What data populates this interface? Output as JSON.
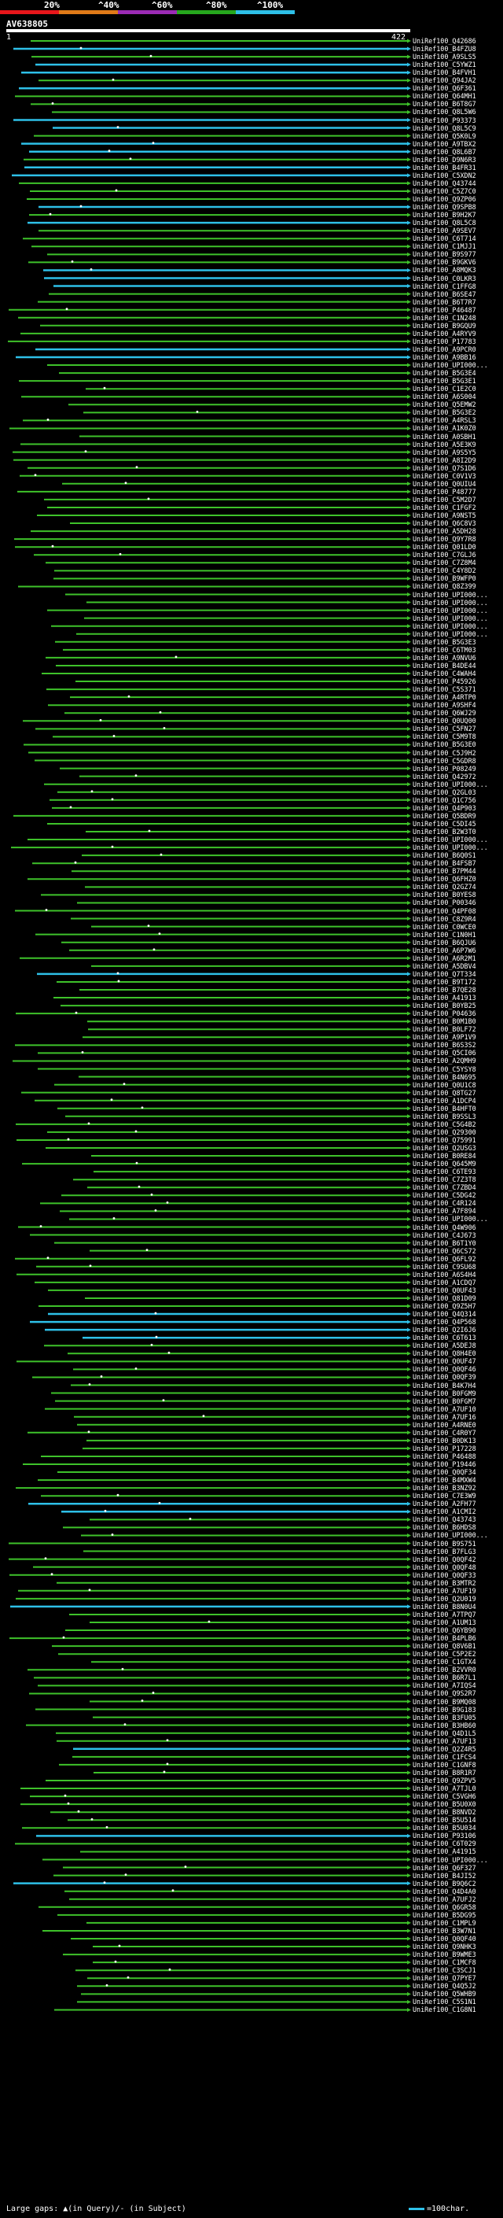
{
  "legend": {
    "labels": [
      "20%",
      "^40%",
      "^60%",
      "^80%",
      "^100%"
    ],
    "colors": [
      "#e8161b",
      "#e07a18",
      "#9b2bb5",
      "#26a71d",
      "#2ec0e8"
    ]
  },
  "query": {
    "title": "AV638805",
    "start": "1",
    "end": "422"
  },
  "colors": {
    "hit_cyan": "#2ec0e8",
    "hit_green": "#3ec22a",
    "background": "#000000"
  },
  "hits": [
    "UniRef100_Q42686",
    "UniRef100_B4FZU8",
    "UniRef100_A9SLS5",
    "UniRef100_C5YWZ1",
    "UniRef100_B4FVH1",
    "UniRef100_Q94JA2",
    "UniRef100_Q6F361",
    "UniRef100_Q64MH1",
    "UniRef100_B6T8G7",
    "UniRef100_Q8L5W6",
    "UniRef100_P93373",
    "UniRef100_Q8L5C9",
    "UniRef100_Q5K0L9",
    "UniRef100_A9TBX2",
    "UniRef100_Q8L6B7",
    "UniRef100_D9N6R3",
    "UniRef100_B4FR31",
    "UniRef100_C5XDN2",
    "UniRef100_Q43744",
    "UniRef100_C5Z7C0",
    "UniRef100_Q9ZP06",
    "UniRef100_Q9SPB8",
    "UniRef100_B9H2K7",
    "UniRef100_Q8L5C8",
    "UniRef100_A9SEV7",
    "UniRef100_C6T714",
    "UniRef100_C1MJJ1",
    "UniRef100_B9S977",
    "UniRef100_B9GKV6",
    "UniRef100_A8MQK3",
    "UniRef100_C0LKR3",
    "UniRef100_C1FFG8",
    "UniRef100_B6SE47",
    "UniRef100_B6T7R7",
    "UniRef100_P46487",
    "UniRef100_C1N248",
    "UniRef100_B9GQU9",
    "UniRef100_A4RYV9",
    "UniRef100_P17783",
    "UniRef100_A9PCR0",
    "UniRef100_A9BB16",
    "UniRef100_UPI000...",
    "UniRef100_B5G3E4",
    "UniRef100_B5G3E1",
    "UniRef100_C1E2C0",
    "UniRef100_A6S004",
    "UniRef100_Q5EMW2",
    "UniRef100_B5G3E2",
    "UniRef100_A4RSL3",
    "UniRef100_A1K0Z0",
    "UniRef100_A0SBH1",
    "UniRef100_A5E3K9",
    "UniRef100_A9S5Y5",
    "UniRef100_A8I2D9",
    "UniRef100_Q7S1D6",
    "UniRef100_C0V1V3",
    "UniRef100_Q0UIU4",
    "UniRef100_P48777",
    "UniRef100_C5M2D7",
    "UniRef100_C1FGF2",
    "UniRef100_A9NST5",
    "UniRef100_Q6C8V3",
    "UniRef100_A5DH28",
    "UniRef100_Q9Y7R8",
    "UniRef100_Q01LD0",
    "UniRef100_C7GLJ6",
    "UniRef100_C7Z8M4",
    "UniRef100_C4Y8D2",
    "UniRef100_B9WFP0",
    "UniRef100_Q8Z399",
    "UniRef100_UPI000...",
    "UniRef100_UPI000...",
    "UniRef100_UPI000...",
    "UniRef100_UPI000...",
    "UniRef100_UPI000...",
    "UniRef100_UPI000...",
    "UniRef100_B5G3E3",
    "UniRef100_C6TM03",
    "UniRef100_A9NVU6",
    "UniRef100_B4DE44",
    "UniRef100_C4WAH4",
    "UniRef100_P45926",
    "UniRef100_C5S371",
    "UniRef100_A4RTP0",
    "UniRef100_A9SHF4",
    "UniRef100_Q6WJ29",
    "UniRef100_Q0UQ00",
    "UniRef100_C5FN27",
    "UniRef100_C5M9T8",
    "UniRef100_B5G3E0",
    "UniRef100_C5J9H2",
    "UniRef100_C5GDR8",
    "UniRef100_P08249",
    "UniRef100_Q42972",
    "UniRef100_UPI000...",
    "UniRef100_Q2GL03",
    "UniRef100_Q1C756",
    "UniRef100_Q4P903",
    "UniRef100_Q5BDR9",
    "UniRef100_C5DI45",
    "UniRef100_B2W3T0",
    "UniRef100_UPI000...",
    "UniRef100_UPI000...",
    "UniRef100_B6Q0S1",
    "UniRef100_B4FSB7",
    "UniRef100_B7PM44",
    "UniRef100_Q6FHZ0",
    "UniRef100_Q2GZ74",
    "UniRef100_B0YES8",
    "UniRef100_P00346",
    "UniRef100_Q4PF08",
    "UniRef100_C8Z9R4",
    "UniRef100_C0WCE0",
    "UniRef100_C1N0H1",
    "UniRef100_B6QJU6",
    "UniRef100_A6P7W6",
    "UniRef100_A6R2M1",
    "UniRef100_A5DBV4",
    "UniRef100_Q7T334",
    "UniRef100_B9T172",
    "UniRef100_B7QE28",
    "UniRef100_A41913",
    "UniRef100_B0YB25",
    "UniRef100_P04636",
    "UniRef100_B0M1B0",
    "UniRef100_B0LF72",
    "UniRef100_A9P1V9",
    "UniRef100_B6S3S2",
    "UniRef100_Q5CI06",
    "UniRef100_A2QMH9",
    "UniRef100_C5YSY8",
    "UniRef100_B4N695",
    "UniRef100_Q0U1C8",
    "UniRef100_Q8TG27",
    "UniRef100_A1DCP4",
    "UniRef100_B4HFT0",
    "UniRef100_B9SSL3",
    "UniRef100_C5G4B2",
    "UniRef100_Q29300",
    "UniRef100_Q75991",
    "UniRef100_Q2USG3",
    "UniRef100_B0RE84",
    "UniRef100_Q645M9",
    "UniRef100_C6TE93",
    "UniRef100_C7Z3T8",
    "UniRef100_C7ZBD4",
    "UniRef100_C5DG42",
    "UniRef100_C4R124",
    "UniRef100_A7F894",
    "UniRef100_UPI000...",
    "UniRef100_Q4W906",
    "UniRef100_C4J673",
    "UniRef100_B6T1Y0",
    "UniRef100_Q6CS72",
    "UniRef100_Q6FL92",
    "UniRef100_C9SU68",
    "UniRef100_A6S4H4",
    "UniRef100_A1CDQ7",
    "UniRef100_Q0UF43",
    "UniRef100_Q81D09",
    "UniRef100_Q9Z5H7",
    "UniRef100_Q4Q314",
    "UniRef100_Q4P568",
    "UniRef100_Q2I6J6",
    "UniRef100_C6T613",
    "UniRef100_A5DEJ8",
    "UniRef100_Q8H4E0",
    "UniRef100_Q0UF47",
    "UniRef100_Q0QF46",
    "UniRef100_Q0QF39",
    "UniRef100_B4K7H4",
    "UniRef100_B0FGM9",
    "UniRef100_B0FGM7",
    "UniRef100_A7UF10",
    "UniRef100_A7UF16",
    "UniRef100_A4RNE0",
    "UniRef100_C4R0Y7",
    "UniRef100_B0DK13",
    "UniRef100_P17228",
    "UniRef100_P46488",
    "UniRef100_P19446",
    "UniRef100_Q0QF34",
    "UniRef100_B4MXW4",
    "UniRef100_B3NZ92",
    "UniRef100_C7E3W9",
    "UniRef100_A2FH77",
    "UniRef100_A1CMI2",
    "UniRef100_Q43743",
    "UniRef100_B6HDS8",
    "UniRef100_UPI000...",
    "UniRef100_B9S751",
    "UniRef100_B7FLG3",
    "UniRef100_Q0QF42",
    "UniRef100_Q0QF48",
    "UniRef100_Q0QF33",
    "UniRef100_B3MTR2",
    "UniRef100_A7UF19",
    "UniRef100_Q2U019",
    "UniRef100_B8N0U4",
    "UniRef100_A7TPQ7",
    "UniRef100_A1UM13",
    "UniRef100_Q6YB90",
    "UniRef100_B4PLB6",
    "UniRef100_Q8V6B1",
    "UniRef100_C5P2E2",
    "UniRef100_C1GTX4",
    "UniRef100_B2VVR0",
    "UniRef100_B6R7L1",
    "UniRef100_A7IQS4",
    "UniRef100_Q9S2R7",
    "UniRef100_B9MQ08",
    "UniRef100_B9G183",
    "UniRef100_B3FU05",
    "UniRef100_B3HB60",
    "UniRef100_Q4D1L5",
    "UniRef100_A7UF13",
    "UniRef100_Q2Z4R5",
    "UniRef100_C1FCS4",
    "UniRef100_C1GNF8",
    "UniRef100_B8R1R7",
    "UniRef100_Q9ZPV5",
    "UniRef100_A7TJL0",
    "UniRef100_C5VGH6",
    "UniRef100_B5U0X0",
    "UniRef100_B8NVD2",
    "UniRef100_B5U514",
    "UniRef100_B5U034",
    "UniRef100_P93106",
    "UniRef100_C6T029",
    "UniRef100_A41915",
    "UniRef100_UPI000...",
    "UniRef100_Q6F327",
    "UniRef100_B4JI52",
    "UniRef100_B9Q6C2",
    "UniRef100_Q4D4A0",
    "UniRef100_A7UFJ2",
    "UniRef100_Q6GR58",
    "UniRef100_B5DG95",
    "UniRef100_C1MPL9",
    "UniRef100_B3W7N1",
    "UniRef100_Q0QF40",
    "UniRef100_Q9NHK3",
    "UniRef100_B9WME3",
    "UniRef100_C1MCF8",
    "UniRef100_C3SCJ1",
    "UniRef100_Q7PYE7",
    "UniRef100_Q4Q5J2",
    "UniRef100_Q5WHB9",
    "UniRef100_C5S1N1",
    "UniRef100_C1G8N1"
  ],
  "footer": {
    "gaps_text": "Large gaps: ▲(in Query)/- (in Subject)",
    "scale_text": "=100char."
  }
}
